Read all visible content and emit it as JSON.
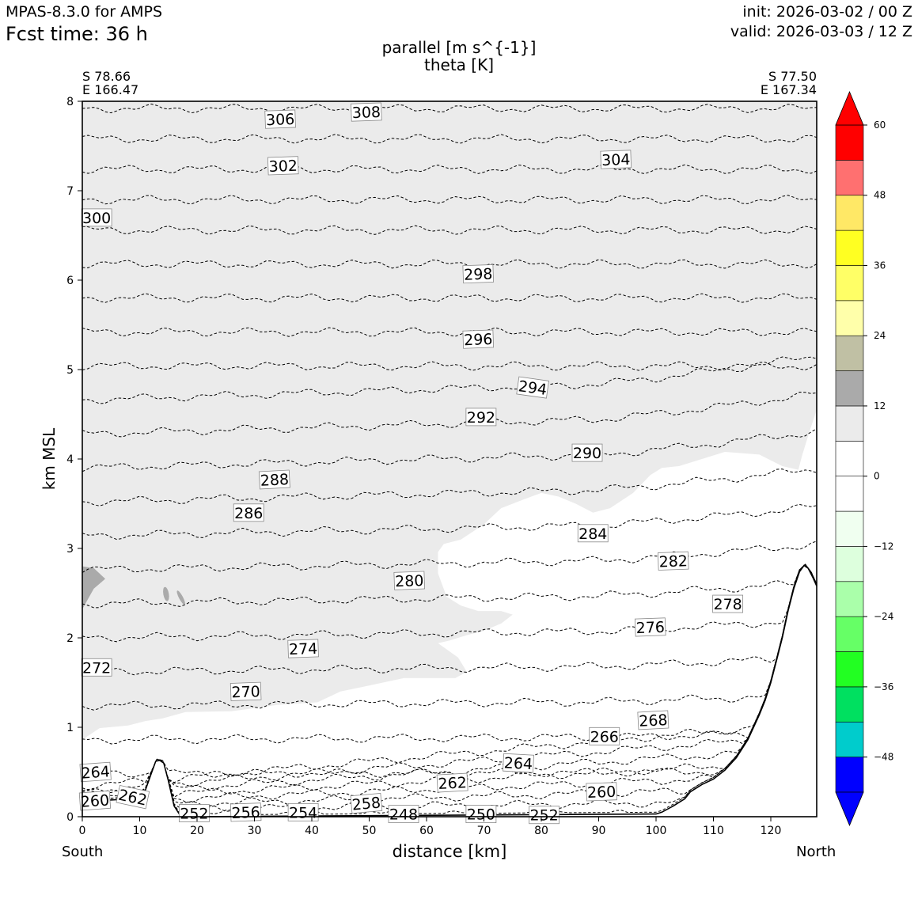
{
  "header": {
    "model": "MPAS-8.3.0 for AMPS",
    "fcst_time": "Fcst time:   36 h",
    "init": "init: 2026-03-02 / 00 Z",
    "valid": "valid: 2026-03-03 / 12 Z"
  },
  "endpoints": {
    "left_lat": "S 78.66",
    "left_lon": "E 166.47",
    "right_lat": "S 77.50",
    "right_lon": "E 167.34",
    "left_dir": "South",
    "right_dir": "North"
  },
  "colors": {
    "contour": "#000000",
    "shade_light_gray": "#ebebeb",
    "shade_dark_gray": "#aaaaaa",
    "terrain": "#ffffff"
  },
  "chart_data": {
    "type": "contour cross-section",
    "title": "parallel [m s^{-1}]",
    "subtitle": "theta [K]",
    "xlabel": "distance [km]",
    "ylabel": "km MSL",
    "xlim": [
      0,
      128
    ],
    "ylim": [
      0,
      8
    ],
    "xticks": [
      0,
      10,
      20,
      30,
      40,
      50,
      60,
      70,
      80,
      90,
      100,
      110,
      120
    ],
    "yticks": [
      0,
      1,
      2,
      3,
      4,
      5,
      6,
      7,
      8
    ],
    "colorbar": {
      "boundaries": [
        -54,
        -48,
        -42,
        -36,
        -30,
        -24,
        -18,
        -12,
        -6,
        0,
        6,
        12,
        18,
        24,
        30,
        36,
        42,
        48,
        54,
        60
      ],
      "colors": [
        "#0000ff",
        "#00cccc",
        "#00e060",
        "#22ff22",
        "#66ff66",
        "#aaffaa",
        "#ddffdd",
        "#f0fff0",
        "#ffffff",
        "#ffffff",
        "#ebebeb",
        "#aaaaaa",
        "#c0c0a4",
        "#ffffaa",
        "#ffff66",
        "#ffff22",
        "#ffe866",
        "#ff7070",
        "#ff0000"
      ],
      "tick_labels": [
        "60",
        "48",
        "36",
        "24",
        "12",
        "0",
        "−12",
        "−24",
        "−36",
        "−48"
      ],
      "tick_values": [
        60,
        48,
        36,
        24,
        12,
        0,
        -12,
        -24,
        -36,
        -48
      ],
      "extend": "both"
    },
    "theta_levels": [
      248,
      250,
      252,
      254,
      256,
      258,
      260,
      262,
      264,
      266,
      268,
      270,
      272,
      274,
      276,
      278,
      280,
      282,
      284,
      286,
      288,
      290,
      292,
      294,
      296,
      298,
      300,
      302,
      304,
      306,
      308
    ],
    "contour_labels": [
      {
        "text": "308",
        "x": 49.5,
        "y": 7.88,
        "rot": -2
      },
      {
        "text": "306",
        "x": 34.5,
        "y": 7.8,
        "rot": -2
      },
      {
        "text": "302",
        "x": 35.0,
        "y": 7.28,
        "rot": -2
      },
      {
        "text": "304",
        "x": 93.0,
        "y": 7.35,
        "rot": -2
      },
      {
        "text": "300",
        "x": 2.5,
        "y": 6.7,
        "rot": 0
      },
      {
        "text": "298",
        "x": 69.0,
        "y": 6.07,
        "rot": -2
      },
      {
        "text": "296",
        "x": 69.0,
        "y": 5.34,
        "rot": -2
      },
      {
        "text": "294",
        "x": 78.5,
        "y": 4.8,
        "rot": 8
      },
      {
        "text": "292",
        "x": 69.5,
        "y": 4.47,
        "rot": 0
      },
      {
        "text": "290",
        "x": 88.0,
        "y": 4.07,
        "rot": 0
      },
      {
        "text": "288",
        "x": 33.5,
        "y": 3.77,
        "rot": -3
      },
      {
        "text": "286",
        "x": 29.0,
        "y": 3.4,
        "rot": 0
      },
      {
        "text": "284",
        "x": 89.0,
        "y": 3.17,
        "rot": 0
      },
      {
        "text": "282",
        "x": 103.0,
        "y": 2.86,
        "rot": -2
      },
      {
        "text": "280",
        "x": 57.0,
        "y": 2.64,
        "rot": -2
      },
      {
        "text": "278",
        "x": 112.5,
        "y": 2.38,
        "rot": 0
      },
      {
        "text": "276",
        "x": 99.0,
        "y": 2.12,
        "rot": -2
      },
      {
        "text": "274",
        "x": 38.5,
        "y": 1.88,
        "rot": -2
      },
      {
        "text": "272",
        "x": 2.5,
        "y": 1.67,
        "rot": 0
      },
      {
        "text": "270",
        "x": 28.5,
        "y": 1.4,
        "rot": -2
      },
      {
        "text": "268",
        "x": 99.5,
        "y": 1.08,
        "rot": -3
      },
      {
        "text": "266",
        "x": 91.0,
        "y": 0.9,
        "rot": 0
      },
      {
        "text": "264",
        "x": 76.0,
        "y": 0.6,
        "rot": 3
      },
      {
        "text": "264",
        "x": 2.3,
        "y": 0.5,
        "rot": -4
      },
      {
        "text": "262",
        "x": 64.5,
        "y": 0.38,
        "rot": -3
      },
      {
        "text": "262",
        "x": 8.8,
        "y": 0.22,
        "rot": 12
      },
      {
        "text": "260",
        "x": 90.5,
        "y": 0.28,
        "rot": -2
      },
      {
        "text": "260",
        "x": 2.2,
        "y": 0.18,
        "rot": -4
      },
      {
        "text": "258",
        "x": 49.5,
        "y": 0.15,
        "rot": -5
      },
      {
        "text": "256",
        "x": 28.5,
        "y": 0.05,
        "rot": -2
      },
      {
        "text": "254",
        "x": 38.5,
        "y": 0.05,
        "rot": 0
      },
      {
        "text": "252",
        "x": 19.5,
        "y": 0.04,
        "rot": 0
      },
      {
        "text": "250",
        "x": 69.5,
        "y": 0.03,
        "rot": 0
      },
      {
        "text": "248",
        "x": 56.0,
        "y": 0.03,
        "rot": 0
      },
      {
        "text": "252",
        "x": 80.5,
        "y": 0.02,
        "rot": 0
      }
    ],
    "terrain": {
      "x": [
        0,
        9,
        11,
        12,
        12.8,
        13.5,
        14.2,
        15,
        16,
        17,
        18,
        100,
        101,
        103,
        105,
        106,
        108,
        110,
        112,
        114,
        116,
        118,
        119,
        120,
        121,
        122,
        123,
        124,
        125,
        125.8,
        126.5,
        127.3,
        128
      ],
      "y": [
        0.17,
        0.2,
        0.3,
        0.48,
        0.62,
        0.63,
        0.6,
        0.4,
        0.12,
        0.02,
        0.0,
        0.03,
        0.05,
        0.12,
        0.2,
        0.28,
        0.36,
        0.42,
        0.52,
        0.66,
        0.86,
        1.14,
        1.3,
        1.5,
        1.75,
        2.0,
        2.3,
        2.55,
        2.74,
        2.81,
        2.78,
        2.68,
        2.58
      ]
    }
  }
}
